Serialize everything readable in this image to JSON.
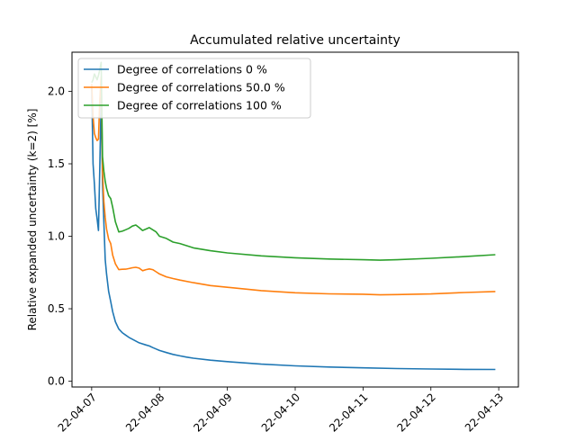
{
  "chart_data": {
    "type": "line",
    "title": "Accumulated relative uncertainty",
    "xlabel": "",
    "ylabel": "Relative expanded uncertainty (k=2) [%]",
    "x_tick_labels": [
      "22-04-07",
      "22-04-08",
      "22-04-09",
      "22-04-10",
      "22-04-11",
      "22-04-12",
      "22-04-13"
    ],
    "y_tick_labels": [
      "0.0",
      "0.5",
      "1.0",
      "1.5",
      "2.0"
    ],
    "x_unit": "days",
    "xlim": [
      -0.29,
      6.29
    ],
    "ylim": [
      -0.04,
      2.27
    ],
    "grid": false,
    "legend_position": "upper left",
    "series": [
      {
        "name": "Degree of correlations 0 %",
        "color": "#1f77b4",
        "x": [
          0.0,
          0.02,
          0.04,
          0.06,
          0.08,
          0.1,
          0.12,
          0.14,
          0.16,
          0.18,
          0.2,
          0.22,
          0.25,
          0.28,
          0.31,
          0.35,
          0.4,
          0.45,
          0.5,
          0.55,
          0.6,
          0.7,
          0.8,
          0.85,
          0.9,
          0.95,
          1.0,
          1.1,
          1.2,
          1.3,
          1.4,
          1.5,
          1.75,
          2.0,
          2.5,
          3.0,
          3.5,
          4.0,
          4.5,
          5.0,
          5.5,
          5.95
        ],
        "values": [
          2.03,
          1.5,
          1.36,
          1.19,
          1.12,
          1.04,
          1.48,
          1.96,
          1.36,
          1.1,
          0.84,
          0.74,
          0.62,
          0.55,
          0.48,
          0.41,
          0.36,
          0.335,
          0.318,
          0.302,
          0.29,
          0.265,
          0.25,
          0.243,
          0.232,
          0.222,
          0.212,
          0.198,
          0.185,
          0.175,
          0.166,
          0.159,
          0.145,
          0.135,
          0.118,
          0.106,
          0.098,
          0.092,
          0.087,
          0.084,
          0.082,
          0.081
        ]
      },
      {
        "name": "Degree of correlations 50.0 %",
        "color": "#ff7f0e",
        "x": [
          0.0,
          0.02,
          0.04,
          0.06,
          0.08,
          0.1,
          0.12,
          0.14,
          0.16,
          0.18,
          0.2,
          0.22,
          0.25,
          0.28,
          0.31,
          0.35,
          0.4,
          0.45,
          0.5,
          0.55,
          0.6,
          0.65,
          0.7,
          0.75,
          0.8,
          0.85,
          0.9,
          0.95,
          1.0,
          1.1,
          1.2,
          1.3,
          1.5,
          1.75,
          2.0,
          2.5,
          3.0,
          3.5,
          4.0,
          4.25,
          4.5,
          5.0,
          5.5,
          5.95
        ],
        "values": [
          2.05,
          1.83,
          1.71,
          1.68,
          1.66,
          1.67,
          1.95,
          2.1,
          1.45,
          1.24,
          1.13,
          1.05,
          0.98,
          0.95,
          0.87,
          0.81,
          0.77,
          0.772,
          0.773,
          0.777,
          0.783,
          0.786,
          0.78,
          0.762,
          0.77,
          0.775,
          0.77,
          0.755,
          0.74,
          0.72,
          0.708,
          0.698,
          0.68,
          0.66,
          0.648,
          0.625,
          0.61,
          0.603,
          0.6,
          0.596,
          0.598,
          0.602,
          0.612,
          0.619
        ]
      },
      {
        "name": "Degree of correlations 100 %",
        "color": "#2ca02c",
        "x": [
          0.0,
          0.02,
          0.04,
          0.06,
          0.08,
          0.1,
          0.12,
          0.14,
          0.16,
          0.18,
          0.2,
          0.22,
          0.25,
          0.28,
          0.31,
          0.35,
          0.4,
          0.45,
          0.5,
          0.55,
          0.6,
          0.65,
          0.7,
          0.75,
          0.8,
          0.85,
          0.9,
          0.95,
          1.0,
          1.1,
          1.2,
          1.3,
          1.4,
          1.5,
          1.75,
          2.0,
          2.5,
          3.0,
          3.5,
          4.0,
          4.25,
          4.5,
          5.0,
          5.5,
          5.95
        ],
        "values": [
          2.06,
          2.08,
          2.12,
          2.1,
          2.08,
          2.11,
          2.15,
          2.2,
          1.55,
          1.45,
          1.38,
          1.33,
          1.28,
          1.26,
          1.2,
          1.1,
          1.03,
          1.035,
          1.045,
          1.055,
          1.07,
          1.078,
          1.06,
          1.04,
          1.05,
          1.06,
          1.045,
          1.03,
          1.0,
          0.985,
          0.96,
          0.95,
          0.935,
          0.92,
          0.9,
          0.885,
          0.865,
          0.852,
          0.843,
          0.838,
          0.835,
          0.838,
          0.848,
          0.86,
          0.873
        ]
      }
    ]
  }
}
